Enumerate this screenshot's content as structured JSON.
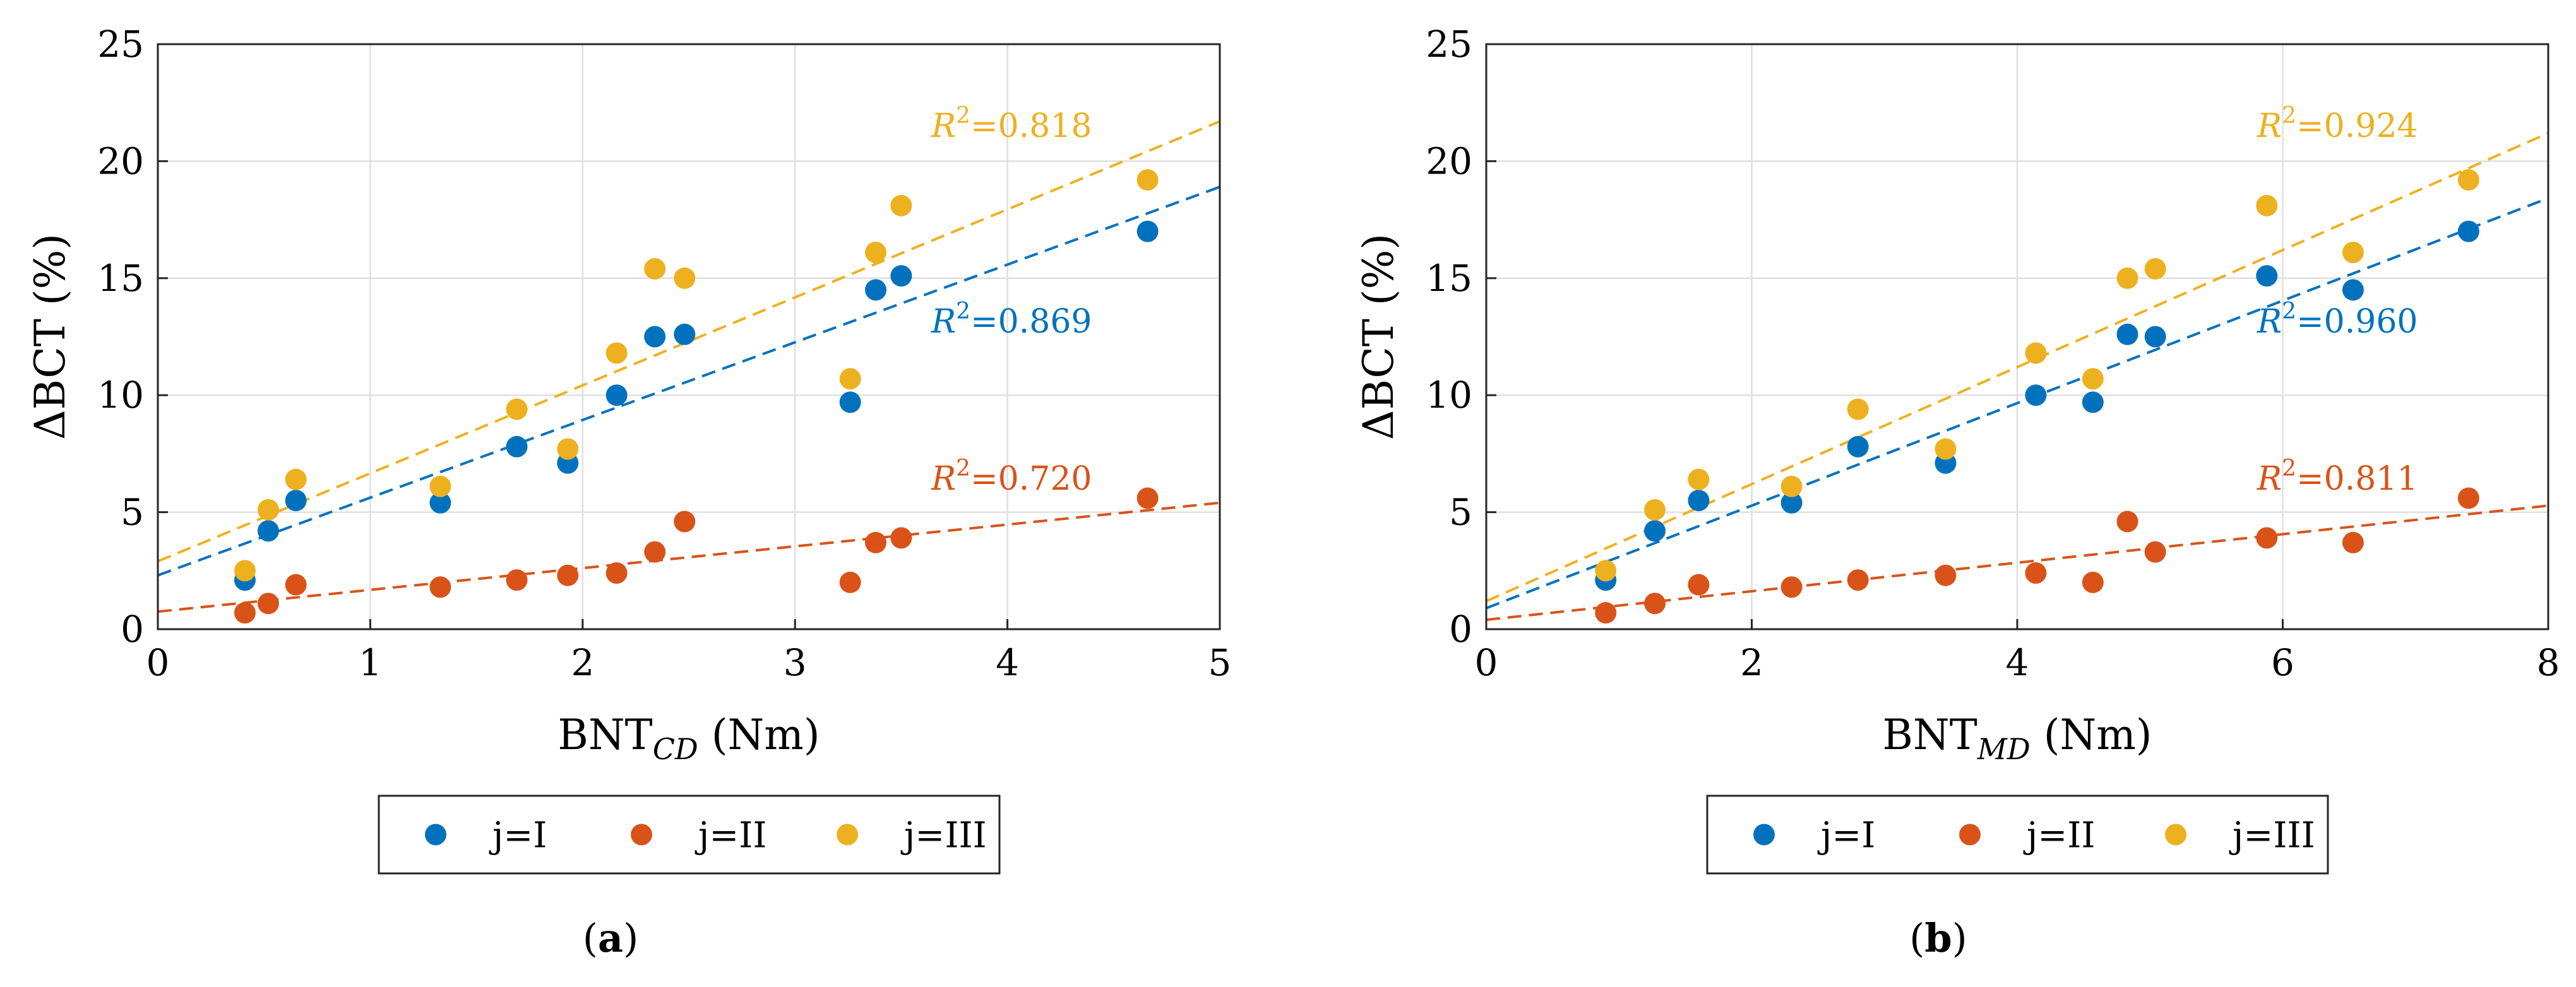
{
  "colors": {
    "series_I": "#0072BD",
    "series_II": "#D95319",
    "series_III": "#EDB120",
    "grid": "#dfdfdf",
    "axis": "#262626"
  },
  "chart_data": [
    {
      "type": "scatter",
      "panel_label": "(a)",
      "panel_letter": "a",
      "xlabel": "BNT",
      "xlabel_sub": "CD",
      "xlabel_unit": "(Nm)",
      "ylabel": "ΔBCT (%)",
      "xlim": [
        0,
        5
      ],
      "ylim": [
        0,
        25
      ],
      "xticks": [
        0,
        1,
        2,
        3,
        4,
        5
      ],
      "yticks": [
        0,
        5,
        10,
        15,
        20,
        25
      ],
      "grid": true,
      "legend": [
        "j=I",
        "j=II",
        "j=III"
      ],
      "series": [
        {
          "name": "j=I",
          "x": [
            0.41,
            0.52,
            0.65,
            1.33,
            1.69,
            1.93,
            2.16,
            2.34,
            2.48,
            3.26,
            3.38,
            3.5,
            4.66
          ],
          "y": [
            2.1,
            4.2,
            5.5,
            5.4,
            7.8,
            7.1,
            10.0,
            12.5,
            12.6,
            9.7,
            14.5,
            15.1,
            17.0
          ],
          "fit": [
            2.3,
            3.32
          ],
          "r2_label": "0.869"
        },
        {
          "name": "j=II",
          "x": [
            0.41,
            0.52,
            0.65,
            1.33,
            1.69,
            1.93,
            2.16,
            2.34,
            2.48,
            3.26,
            3.38,
            3.5,
            4.66
          ],
          "y": [
            0.7,
            1.1,
            1.9,
            1.8,
            2.1,
            2.3,
            2.4,
            3.3,
            4.6,
            2.0,
            3.7,
            3.9,
            5.6
          ],
          "fit": [
            0.75,
            0.93
          ],
          "r2_label": "0.720"
        },
        {
          "name": "j=III",
          "x": [
            0.41,
            0.52,
            0.65,
            1.33,
            1.69,
            1.93,
            2.16,
            2.34,
            2.48,
            3.26,
            3.38,
            3.5,
            4.66
          ],
          "y": [
            2.5,
            5.1,
            6.4,
            6.1,
            9.4,
            7.7,
            11.8,
            15.4,
            15.0,
            10.7,
            16.1,
            18.1,
            19.2
          ],
          "fit": [
            2.9,
            3.76
          ],
          "r2_label": "0.818"
        }
      ]
    },
    {
      "type": "scatter",
      "panel_label": "(b)",
      "panel_letter": "b",
      "xlabel": "BNT",
      "xlabel_sub": "MD",
      "xlabel_unit": "(Nm)",
      "ylabel": "ΔBCT (%)",
      "xlim": [
        0,
        8
      ],
      "ylim": [
        0,
        25
      ],
      "xticks": [
        0,
        2,
        4,
        6,
        8
      ],
      "yticks": [
        0,
        5,
        10,
        15,
        20,
        25
      ],
      "grid": true,
      "legend": [
        "j=I",
        "j=II",
        "j=III"
      ],
      "series": [
        {
          "name": "j=I",
          "x": [
            0.9,
            1.27,
            1.6,
            2.3,
            2.8,
            3.46,
            4.14,
            4.57,
            4.83,
            5.04,
            5.88,
            6.53,
            7.4
          ],
          "y": [
            2.1,
            4.2,
            5.5,
            5.4,
            7.8,
            7.1,
            10.0,
            9.7,
            12.6,
            12.5,
            15.1,
            14.5,
            17.0
          ],
          "fit": [
            0.9,
            2.19
          ],
          "r2_label": "0.960"
        },
        {
          "name": "j=II",
          "x": [
            0.9,
            1.27,
            1.6,
            2.3,
            2.8,
            3.46,
            4.14,
            4.57,
            4.83,
            5.04,
            5.88,
            6.53,
            7.4
          ],
          "y": [
            0.7,
            1.1,
            1.9,
            1.8,
            2.1,
            2.3,
            2.4,
            2.0,
            4.6,
            3.3,
            3.9,
            3.7,
            5.6
          ],
          "fit": [
            0.4,
            0.61
          ],
          "r2_label": "0.811"
        },
        {
          "name": "j=III",
          "x": [
            0.9,
            1.27,
            1.6,
            2.3,
            2.8,
            3.46,
            4.14,
            4.57,
            4.83,
            5.04,
            5.88,
            6.53,
            7.4
          ],
          "y": [
            2.5,
            5.1,
            6.4,
            6.1,
            9.4,
            7.7,
            11.8,
            10.7,
            15.0,
            15.4,
            18.1,
            16.1,
            19.2
          ],
          "fit": [
            1.2,
            2.5
          ],
          "r2_label": "0.924"
        }
      ]
    }
  ]
}
